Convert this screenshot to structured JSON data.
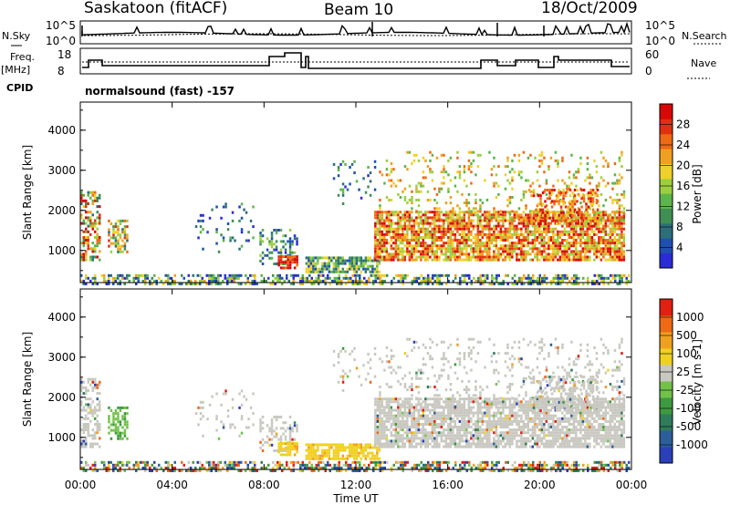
{
  "header": {
    "station": "Saskatoon (fitACF)",
    "beam": "Beam 10",
    "date": "18/Oct/2009"
  },
  "left_labels": {
    "nsky": "N.Sky",
    "freq": "Freq.",
    "freq_unit": "[MHz]",
    "cpid": "CPID"
  },
  "right_labels": {
    "nsearch": "N.Search",
    "nave": "Nave"
  },
  "cpid_text": "normalsound (fast) -157",
  "chart_data": [
    {
      "type": "line",
      "panel": "noise",
      "series": [
        {
          "name": "N.Sky"
        },
        {
          "name": "N.Search"
        }
      ],
      "left_ticks": [
        "10^5",
        "10^0"
      ],
      "right_ticks": [
        "10^5",
        "10^0"
      ]
    },
    {
      "type": "line",
      "panel": "frequency-nave",
      "series": [
        {
          "name": "Freq."
        },
        {
          "name": "Nave"
        }
      ],
      "left_ticks": [
        "18",
        "8"
      ],
      "right_ticks": [
        "60",
        "0"
      ]
    },
    {
      "type": "heatmap",
      "panel": "power",
      "ylabel": "Slant Range [km]",
      "yticks": [
        "1000",
        "2000",
        "3000",
        "4000"
      ],
      "colorbar": {
        "label": "Power [dB]",
        "ticks": [
          "4",
          "8",
          "12",
          "16",
          "20",
          "24",
          "28"
        ],
        "colors": [
          "#2b2bd8",
          "#1f4fb0",
          "#2c6e7a",
          "#3f8f55",
          "#5cb54a",
          "#9ccf3e",
          "#f0d02a",
          "#f0a020",
          "#ee6a14",
          "#e03010",
          "#d80808"
        ]
      }
    },
    {
      "type": "heatmap",
      "panel": "velocity",
      "ylabel": "Slant Range [km]",
      "xlabel": "Time UT",
      "yticks": [
        "1000",
        "2000",
        "3000",
        "4000"
      ],
      "xticks": [
        "00:00",
        "04:00",
        "08:00",
        "12:00",
        "16:00",
        "20:00",
        "00:00"
      ],
      "colorbar": {
        "label": "Velocity [m s-1]",
        "ticks": [
          "1000",
          "500",
          "100",
          "25",
          "-25",
          "-100",
          "-500",
          "-1000"
        ],
        "colors": [
          "#2b3fb8",
          "#2c5f9a",
          "#2f7c5a",
          "#3e9a40",
          "#72c24a",
          "#c8c8c0",
          "#f0d020",
          "#f0a020",
          "#ee6a14",
          "#e02010"
        ]
      }
    }
  ]
}
